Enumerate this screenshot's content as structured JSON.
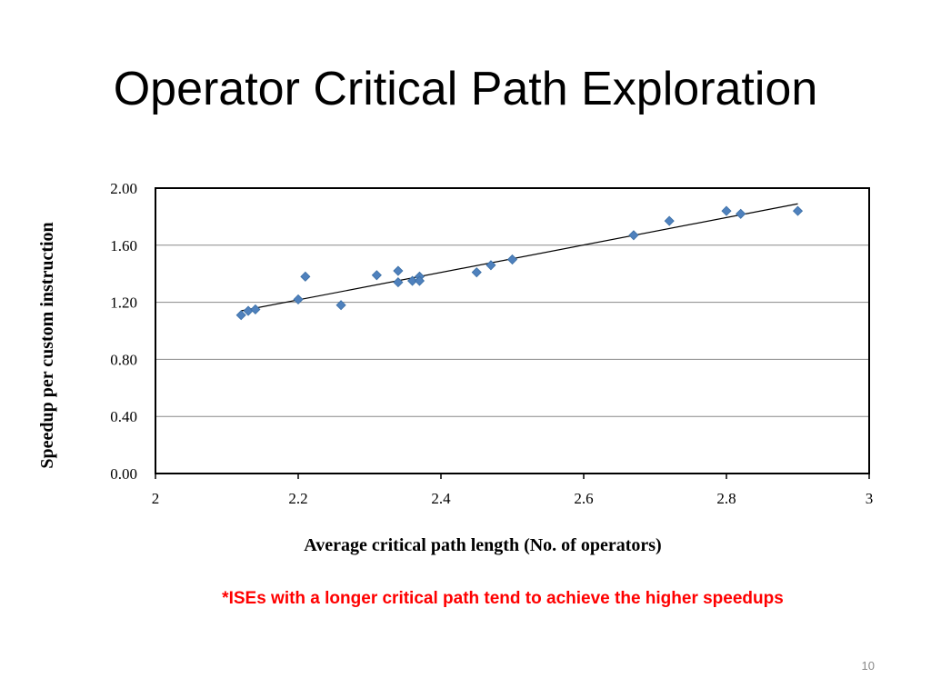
{
  "slide": {
    "title": "Operator Critical Path Exploration",
    "note": "*ISEs with a longer critical path tend to achieve the higher speedups",
    "number": "10"
  },
  "colors": {
    "marker": "#4f81bd",
    "marker_edge": "#3a6ea5",
    "trendline": "#000000",
    "gridline": "#888888",
    "note": "#ff0000"
  },
  "chart_data": {
    "type": "scatter",
    "title": "",
    "xlabel": "Average critical path length (No. of operators)",
    "ylabel": "Speedup per custom instruction",
    "xlim": [
      2,
      3
    ],
    "ylim": [
      0,
      2
    ],
    "x_ticks": [
      "2",
      "2.2",
      "2.4",
      "2.6",
      "2.8",
      "3"
    ],
    "y_ticks": [
      "0.00",
      "0.40",
      "0.80",
      "1.20",
      "1.60",
      "2.00"
    ],
    "grid": "horizontal",
    "legend": "none",
    "marker": "diamond",
    "trendline": {
      "type": "linear",
      "from": [
        2.12,
        1.14
      ],
      "to": [
        2.9,
        1.89
      ]
    },
    "points": [
      {
        "x": 2.12,
        "y": 1.11
      },
      {
        "x": 2.13,
        "y": 1.14
      },
      {
        "x": 2.14,
        "y": 1.15
      },
      {
        "x": 2.2,
        "y": 1.22
      },
      {
        "x": 2.21,
        "y": 1.38
      },
      {
        "x": 2.26,
        "y": 1.18
      },
      {
        "x": 2.31,
        "y": 1.39
      },
      {
        "x": 2.34,
        "y": 1.42
      },
      {
        "x": 2.34,
        "y": 1.34
      },
      {
        "x": 2.36,
        "y": 1.35
      },
      {
        "x": 2.37,
        "y": 1.38
      },
      {
        "x": 2.37,
        "y": 1.35
      },
      {
        "x": 2.45,
        "y": 1.41
      },
      {
        "x": 2.47,
        "y": 1.46
      },
      {
        "x": 2.5,
        "y": 1.5
      },
      {
        "x": 2.67,
        "y": 1.67
      },
      {
        "x": 2.72,
        "y": 1.77
      },
      {
        "x": 2.8,
        "y": 1.84
      },
      {
        "x": 2.82,
        "y": 1.82
      },
      {
        "x": 2.9,
        "y": 1.84
      }
    ]
  }
}
